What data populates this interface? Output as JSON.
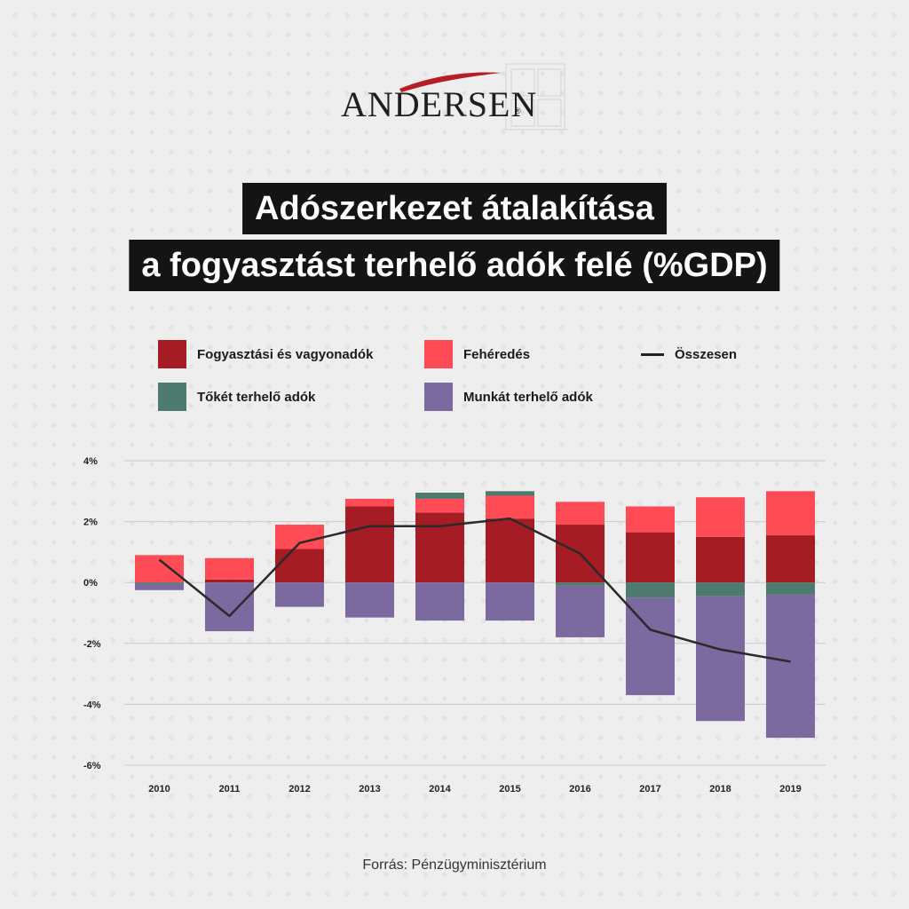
{
  "logo": {
    "text": "ANDERSEN",
    "reg": "®"
  },
  "title": {
    "line1": "Adószerkezet átalakítása",
    "line2": "a fogyasztást terhelő adók felé (%GDP)"
  },
  "legend": {
    "consumption": "Fogyasztási és vagyonadók",
    "whitening": "Fehéredés",
    "total": "Összesen",
    "capital": "Tőkét terhelő adók",
    "labor": "Munkát terhelő adók"
  },
  "colors": {
    "consumption": "#a51c24",
    "whitening": "#ff4b55",
    "capital": "#4e7a70",
    "labor": "#7b6aa0",
    "total": "#2a2a2a",
    "grid": "#c9c9c9"
  },
  "source": "Forrás: Pénzügyminisztérium",
  "chart_data": {
    "type": "bar",
    "stacked": true,
    "categories": [
      "2010",
      "2011",
      "2012",
      "2013",
      "2014",
      "2015",
      "2016",
      "2017",
      "2018",
      "2019"
    ],
    "yticks": [
      "4%",
      "2%",
      "0%",
      "-2%",
      "-4%",
      "-6%"
    ],
    "ylim": [
      -6,
      4
    ],
    "unit": "%",
    "series": [
      {
        "name": "Fogyasztási és vagyonadók",
        "key": "consumption",
        "values": [
          0,
          0.1,
          1.1,
          2.5,
          2.3,
          2.1,
          1.9,
          1.65,
          1.5,
          1.55
        ]
      },
      {
        "name": "Fehéredés",
        "key": "whitening",
        "values": [
          0.9,
          0.7,
          0.8,
          0.25,
          0.45,
          0.75,
          0.75,
          0.85,
          1.3,
          1.45
        ]
      },
      {
        "name": "Tőkét terhelő adók",
        "key": "capital",
        "values": [
          -0.05,
          0,
          0,
          0,
          0.2,
          0.15,
          -0.1,
          -0.5,
          -0.45,
          -0.4
        ]
      },
      {
        "name": "Munkát terhelő adók",
        "key": "labor",
        "values": [
          -0.2,
          -1.6,
          -0.8,
          -1.15,
          -1.25,
          -1.25,
          -1.7,
          -3.2,
          -4.1,
          -4.7
        ]
      }
    ],
    "line": {
      "name": "Összesen",
      "values": [
        0.75,
        -1.1,
        1.3,
        1.85,
        1.85,
        2.1,
        0.95,
        -1.55,
        -2.2,
        -2.6
      ]
    }
  }
}
